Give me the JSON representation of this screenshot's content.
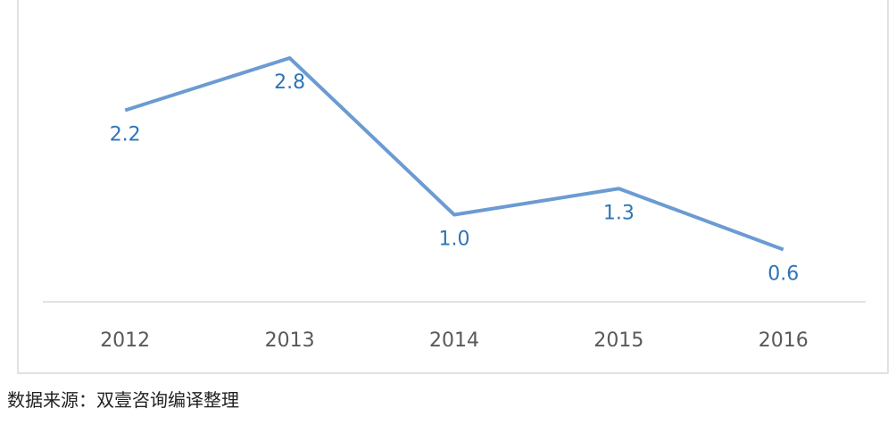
{
  "chart_data": {
    "type": "line",
    "categories": [
      "2012",
      "2013",
      "2014",
      "2015",
      "2016"
    ],
    "values": [
      2.2,
      2.8,
      1.0,
      1.3,
      0.6
    ],
    "value_labels": [
      "2.2",
      "2.8",
      "1.0",
      "1.3",
      "0.6"
    ],
    "color": "#6b9bd2",
    "source": "数据来源：双壹咨询编译整理"
  }
}
